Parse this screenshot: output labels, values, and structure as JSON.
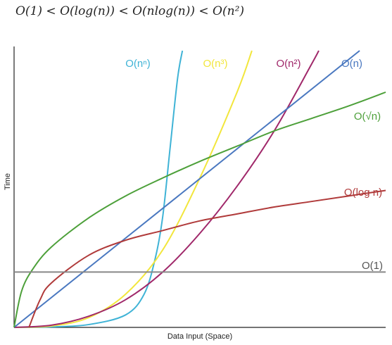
{
  "header": {
    "formula": "O(1) < O(log(n)) < O(nlog(n)) < O(n²)"
  },
  "chart_data": {
    "type": "line",
    "title": "",
    "xlabel": "Data Input (Space)",
    "ylabel": "Time",
    "xlim": [
      0,
      10
    ],
    "ylim": [
      0,
      10
    ],
    "grid": false,
    "series": [
      {
        "name": "O(nⁿ)",
        "color": "#3fb3d6",
        "points": [
          [
            0,
            0
          ],
          [
            1,
            0.02
          ],
          [
            2,
            0.1
          ],
          [
            3,
            0.45
          ],
          [
            3.5,
            1.2
          ],
          [
            3.8,
            2.5
          ],
          [
            4,
            4
          ],
          [
            4.2,
            6.5
          ],
          [
            4.4,
            9
          ],
          [
            4.53,
            10
          ]
        ]
      },
      {
        "name": "O(n³)",
        "color": "#f2e63c",
        "points": [
          [
            0,
            0
          ],
          [
            1,
            0.05
          ],
          [
            2,
            0.35
          ],
          [
            3,
            1.2
          ],
          [
            4,
            2.8
          ],
          [
            5,
            5.4
          ],
          [
            6,
            8.5
          ],
          [
            6.4,
            10
          ]
        ]
      },
      {
        "name": "O(n²)",
        "color": "#a0286a",
        "points": [
          [
            0,
            0
          ],
          [
            1,
            0.08
          ],
          [
            2,
            0.4
          ],
          [
            3,
            1
          ],
          [
            4,
            2
          ],
          [
            5,
            3.4
          ],
          [
            6,
            5.1
          ],
          [
            7,
            7.1
          ],
          [
            8,
            9.5
          ],
          [
            8.2,
            10
          ]
        ]
      },
      {
        "name": "O(n)",
        "color": "#4a78c0",
        "points": [
          [
            0,
            0
          ],
          [
            9.3,
            10
          ]
        ]
      },
      {
        "name": "O(√n)",
        "color": "#4da03a",
        "points": [
          [
            0,
            0
          ],
          [
            0.2,
            1.3
          ],
          [
            0.5,
            2.1
          ],
          [
            1,
            2.9
          ],
          [
            2,
            3.95
          ],
          [
            3,
            4.75
          ],
          [
            4,
            5.4
          ],
          [
            5,
            6.0
          ],
          [
            6,
            6.55
          ],
          [
            7,
            7.1
          ],
          [
            8,
            7.55
          ],
          [
            9,
            8.0
          ],
          [
            10,
            8.5
          ]
        ]
      },
      {
        "name": "O(log n)",
        "color": "#b03a3a",
        "points": [
          [
            0.4,
            0
          ],
          [
            0.7,
            1.0
          ],
          [
            1,
            1.6
          ],
          [
            2,
            2.6
          ],
          [
            3,
            3.15
          ],
          [
            4,
            3.5
          ],
          [
            5,
            3.85
          ],
          [
            6,
            4.1
          ],
          [
            7,
            4.35
          ],
          [
            8,
            4.55
          ],
          [
            9,
            4.75
          ],
          [
            10,
            4.95
          ]
        ]
      },
      {
        "name": "O(1)",
        "color": "#888888",
        "points": [
          [
            0,
            2
          ],
          [
            10,
            2
          ]
        ]
      }
    ]
  }
}
